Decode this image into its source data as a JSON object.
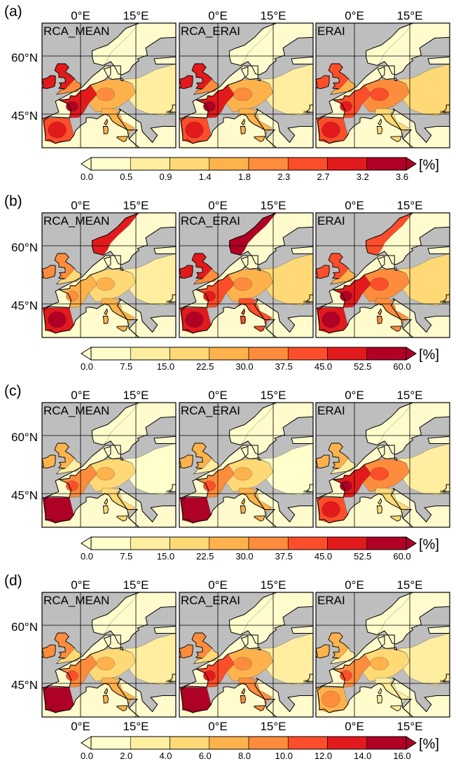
{
  "chart_data": {
    "type": "heatmap",
    "unit_label": "[%]",
    "map_extent": {
      "lon": [
        -10,
        30
      ],
      "lat": [
        35,
        70
      ]
    },
    "map_labels": {
      "top": [
        "0°E",
        "15°E"
      ],
      "bottom": [
        "0°E",
        "15°E"
      ],
      "left": [
        "60°N",
        "45°N"
      ],
      "inner": "45N"
    },
    "colors": {
      "ocean": "#bebebe",
      "land_base": "#fffbcc",
      "scale": [
        "#ffffcc",
        "#ffeda0",
        "#fed976",
        "#feb24c",
        "#fd8d3c",
        "#fc4e2a",
        "#e31a1c",
        "#b10026"
      ]
    },
    "panels": [
      {
        "label": "(a)",
        "bottom_lon_labels": false,
        "colorbar_ticks": [
          "0.0",
          "0.5",
          "0.9",
          "1.4",
          "1.8",
          "2.3",
          "2.7",
          "3.2",
          "3.6"
        ],
        "maps": [
          {
            "title": "RCA_MEAN",
            "levels": {
              "iberia": 5,
              "france_w": 6,
              "britain": 6,
              "central": 3,
              "italy": 3,
              "norway": 0,
              "east": 1
            }
          },
          {
            "title": "RCA_ERAI",
            "levels": {
              "iberia": 5,
              "france_w": 6,
              "britain": 6,
              "central": 3,
              "italy": 3,
              "norway": 0,
              "east": 1
            }
          },
          {
            "title": "ERAI",
            "levels": {
              "iberia": 5,
              "france_w": 5,
              "britain": 5,
              "central": 4,
              "italy": 2,
              "norway": 0,
              "east": 2
            }
          }
        ]
      },
      {
        "label": "(b)",
        "bottom_lon_labels": false,
        "colorbar_ticks": [
          "0.0",
          "7.5",
          "15.0",
          "22.5",
          "30.0",
          "37.5",
          "45.0",
          "52.5",
          "60.0"
        ],
        "maps": [
          {
            "title": "RCA_MEAN",
            "levels": {
              "iberia": 6,
              "france_w": 3,
              "britain": 4,
              "central": 2,
              "italy": 3,
              "norway": 6,
              "east": 1
            }
          },
          {
            "title": "RCA_ERAI",
            "levels": {
              "iberia": 6,
              "france_w": 5,
              "britain": 6,
              "central": 3,
              "italy": 5,
              "norway": 7,
              "east": 2
            }
          },
          {
            "title": "ERAI",
            "levels": {
              "iberia": 6,
              "france_w": 6,
              "britain": 5,
              "central": 4,
              "italy": 4,
              "norway": 5,
              "east": 2
            }
          }
        ]
      },
      {
        "label": "(c)",
        "bottom_lon_labels": false,
        "colorbar_ticks": [
          "0.0",
          "7.5",
          "15.0",
          "22.5",
          "30.0",
          "37.5",
          "45.0",
          "52.5",
          "60.0"
        ],
        "maps": [
          {
            "title": "RCA_MEAN",
            "levels": {
              "iberia": 7,
              "france_w": 4,
              "britain": 3,
              "central": 2,
              "italy": 2,
              "norway": 0,
              "east": 0
            }
          },
          {
            "title": "RCA_ERAI",
            "levels": {
              "iberia": 7,
              "france_w": 4,
              "britain": 3,
              "central": 2,
              "italy": 3,
              "norway": 0,
              "east": 0
            }
          },
          {
            "title": "ERAI",
            "levels": {
              "iberia": 5,
              "france_w": 6,
              "britain": 3,
              "central": 4,
              "italy": 2,
              "norway": 0,
              "east": 1
            }
          }
        ]
      },
      {
        "label": "(d)",
        "bottom_lon_labels": true,
        "colorbar_ticks": [
          "0.0",
          "2.0",
          "4.0",
          "6.0",
          "8.0",
          "10.0",
          "12.0",
          "14.0",
          "16.0"
        ],
        "maps": [
          {
            "title": "RCA_MEAN",
            "levels": {
              "iberia": 7,
              "france_w": 4,
              "britain": 4,
              "central": 2,
              "italy": 3,
              "norway": 0,
              "east": 1
            }
          },
          {
            "title": "RCA_ERAI",
            "levels": {
              "iberia": 7,
              "france_w": 5,
              "britain": 4,
              "central": 3,
              "italy": 4,
              "norway": 0,
              "east": 1
            }
          },
          {
            "title": "ERAI",
            "levels": {
              "iberia": 3,
              "france_w": 4,
              "britain": 3,
              "central": 2,
              "italy": 1,
              "norway": 0,
              "east": 1
            }
          }
        ]
      }
    ]
  }
}
